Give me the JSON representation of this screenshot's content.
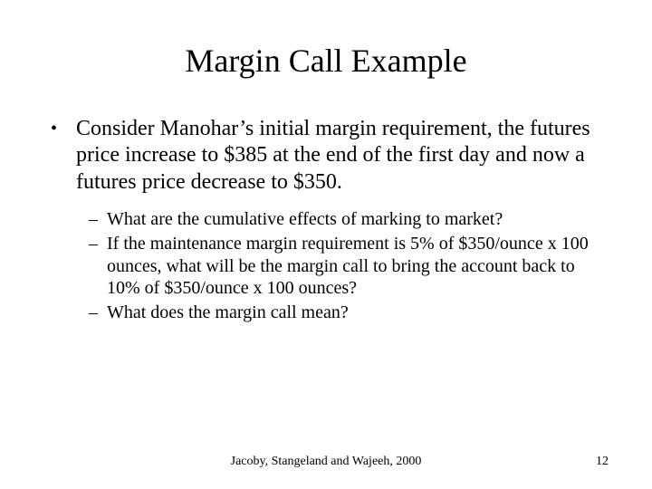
{
  "slide": {
    "title": "Margin Call Example",
    "bullets": [
      {
        "text": "Consider Manohar’s initial margin requirement, the futures price increase to $385 at the end of the first day and now a futures price decrease to $350.",
        "children": [
          {
            "text": "What are the cumulative effects of marking to market?"
          },
          {
            "text": "If the maintenance margin requirement is 5% of $350/ounce x 100 ounces, what will be the margin call to bring the account back to 10% of $350/ounce x 100 ounces?"
          },
          {
            "text": "What does the margin call mean?"
          }
        ]
      }
    ],
    "footer_center": "Jacoby, Stangeland and Wajeeh, 2000",
    "page_number": "12"
  },
  "style": {
    "background_color": "#ffffff",
    "text_color": "#000000",
    "font_family": "Times New Roman",
    "title_fontsize": 36,
    "body_fontsize": 24,
    "sub_fontsize": 20,
    "footer_fontsize": 14,
    "l1_marker": "•",
    "l2_marker": "–"
  }
}
